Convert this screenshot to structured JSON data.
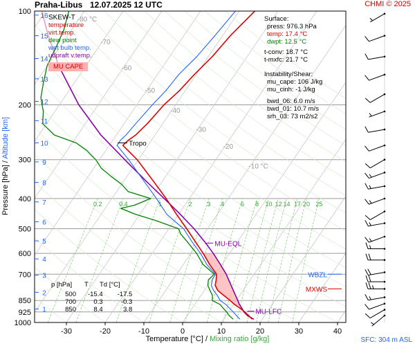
{
  "header": {
    "station": "Praha-Libus",
    "datetime": "12.07.2025 12 UTC",
    "credit": "CHMI © 2025"
  },
  "legend": {
    "title": "SKEW-T",
    "items": [
      {
        "label": "temperature",
        "color": "#e00000"
      },
      {
        "label": "virt.temp.",
        "color": "#e00000"
      },
      {
        "label": "dew point",
        "color": "#008000"
      },
      {
        "label": "wet bulb temp.",
        "color": "#1e64ff"
      },
      {
        "label": "udpraft v.temp.",
        "color": "#8800aa"
      }
    ],
    "badge": "MU CAPE",
    "badge_color": "#ffb0b0"
  },
  "surface_box": {
    "title": "Surface:",
    "lines": [
      {
        "text": "press: 976.3 hPa",
        "color": "#000000"
      },
      {
        "text": "temp: 17.4 °C",
        "color": "#e00000"
      },
      {
        "text": "dwpt: 12.5 °C",
        "color": "#008000"
      },
      {
        "text": "t-conv: 18.7 °C",
        "color": "#000000"
      },
      {
        "text": "t-mxfc: 21.7 °C",
        "color": "#000000"
      }
    ]
  },
  "instability_box": {
    "title": "Instability/Shear:",
    "lines": [
      "mu_cape: 106 J/kg",
      "mu_cinh: -1 J/kg",
      "",
      "bwd_06: 6.0 m/s",
      "bwd_01: 10.7 m/s",
      "srh_03: 73 m2/s2"
    ]
  },
  "table": {
    "headers": [
      "p [hPa]",
      "T",
      "Td [°C]"
    ],
    "rows": [
      [
        "500",
        "-15.4",
        "-17.5"
      ],
      [
        "700",
        "0.3",
        "-0.3"
      ],
      [
        "850",
        "8.4",
        "3.8"
      ]
    ]
  },
  "footer": {
    "sfc": "SFC: 304 m ASL"
  },
  "chart_data": {
    "type": "skew-t",
    "x_label": "Temperature [°C]",
    "x_label_sep": "/",
    "x_label2": "Mixing ratio [g/kg]",
    "y_label": "Pressure [hPa]",
    "y_label_sep": "/",
    "y_label2": "Altitude [km]",
    "temp_ticks": [
      -30,
      -20,
      -10,
      0,
      10,
      20,
      30,
      40
    ],
    "pressure_ticks": [
      100,
      200,
      300,
      400,
      500,
      600,
      700,
      850,
      925,
      1000
    ],
    "altitude_ticks": [
      {
        "km": 1,
        "p": 905
      },
      {
        "km": 2,
        "p": 800
      },
      {
        "km": 3,
        "p": 705
      },
      {
        "km": 4,
        "p": 625
      },
      {
        "km": 5,
        "p": 547
      },
      {
        "km": 6,
        "p": 475
      },
      {
        "km": 7,
        "p": 410
      },
      {
        "km": 8,
        "p": 355
      },
      {
        "km": 9,
        "p": 305
      },
      {
        "km": 10,
        "p": 265
      },
      {
        "km": 11,
        "p": 225
      },
      {
        "km": 12,
        "p": 195
      },
      {
        "km": 13,
        "p": 165
      },
      {
        "km": 14,
        "p": 142
      },
      {
        "km": 15,
        "p": 120
      },
      {
        "km": 16,
        "p": 103
      }
    ],
    "isotherm_labels": [
      {
        "t": -80,
        "p": 108,
        "text": "-80 °C"
      },
      {
        "t": -70,
        "p": 128,
        "text": "-70"
      },
      {
        "t": -60,
        "p": 155,
        "text": "-60"
      },
      {
        "t": -50,
        "p": 183,
        "text": "-50"
      },
      {
        "t": -40,
        "p": 212,
        "text": "-40"
      },
      {
        "t": -30,
        "p": 244,
        "text": "-30"
      },
      {
        "t": -20,
        "p": 277,
        "text": "-20"
      },
      {
        "t": -10,
        "p": 320,
        "text": "-10 °C"
      }
    ],
    "mixing_ratio_labels": [
      "0.2",
      "0.4",
      "1",
      "2",
      "3",
      "4",
      "6",
      "8",
      "10",
      "12",
      "14",
      "17",
      "20",
      "25"
    ],
    "temperature": [
      [
        976,
        17.4
      ],
      [
        950,
        15.8
      ],
      [
        925,
        14.2
      ],
      [
        900,
        12.3
      ],
      [
        875,
        10.2
      ],
      [
        850,
        8.4
      ],
      [
        820,
        6.0
      ],
      [
        790,
        3.5
      ],
      [
        760,
        1.9
      ],
      [
        730,
        1.2
      ],
      [
        700,
        0.3
      ],
      [
        650,
        -3.3
      ],
      [
        600,
        -6.8
      ],
      [
        550,
        -10.9
      ],
      [
        500,
        -15.4
      ],
      [
        450,
        -20.5
      ],
      [
        400,
        -26.0
      ],
      [
        350,
        -32.6
      ],
      [
        300,
        -40.3
      ],
      [
        270,
        -46.5
      ],
      [
        260,
        -46.0
      ],
      [
        250,
        -45.0
      ],
      [
        230,
        -44.0
      ],
      [
        200,
        -43.0
      ],
      [
        180,
        -41.5
      ],
      [
        160,
        -40.5
      ],
      [
        140,
        -39.0
      ],
      [
        120,
        -38.0
      ],
      [
        100,
        -36.0
      ]
    ],
    "dew_point": [
      [
        976,
        12.5
      ],
      [
        950,
        10.8
      ],
      [
        925,
        9.5
      ],
      [
        900,
        8.0
      ],
      [
        875,
        6.5
      ],
      [
        850,
        3.8
      ],
      [
        820,
        3.0
      ],
      [
        790,
        1.5
      ],
      [
        760,
        0.0
      ],
      [
        730,
        -0.8
      ],
      [
        700,
        -0.3
      ],
      [
        650,
        -5.0
      ],
      [
        600,
        -8.5
      ],
      [
        550,
        -13.0
      ],
      [
        520,
        -16.0
      ],
      [
        500,
        -17.5
      ],
      [
        470,
        -25.0
      ],
      [
        450,
        -31.0
      ],
      [
        430,
        -36.0
      ],
      [
        420,
        -33.0
      ],
      [
        400,
        -30.0
      ],
      [
        380,
        -37.0
      ],
      [
        360,
        -40.0
      ],
      [
        340,
        -44.0
      ],
      [
        320,
        -48.0
      ],
      [
        300,
        -51.0
      ],
      [
        280,
        -55.0
      ],
      [
        265,
        -59.0
      ],
      [
        250,
        -66.0
      ],
      [
        230,
        -71.0
      ],
      [
        210,
        -73.0
      ],
      [
        190,
        -76.0
      ],
      [
        170,
        -78.0
      ],
      [
        150,
        -80.0
      ],
      [
        130,
        -81.0
      ],
      [
        115,
        -82.0
      ],
      [
        100,
        -84.0
      ]
    ],
    "wet_bulb": [
      [
        976,
        14.2
      ],
      [
        950,
        12.7
      ],
      [
        925,
        11.2
      ],
      [
        900,
        9.6
      ],
      [
        875,
        8.0
      ],
      [
        850,
        5.8
      ],
      [
        820,
        4.3
      ],
      [
        790,
        2.4
      ],
      [
        760,
        0.9
      ],
      [
        730,
        0.2
      ],
      [
        700,
        0.0
      ],
      [
        650,
        -4.0
      ],
      [
        600,
        -7.5
      ],
      [
        550,
        -11.8
      ],
      [
        500,
        -16.2
      ],
      [
        450,
        -23.0
      ],
      [
        400,
        -28.5
      ],
      [
        350,
        -35.0
      ],
      [
        300,
        -42.5
      ],
      [
        270,
        -48.0
      ],
      [
        260,
        -48.0
      ],
      [
        250,
        -47.5
      ],
      [
        230,
        -47.0
      ],
      [
        200,
        -46.0
      ],
      [
        180,
        -45.0
      ],
      [
        160,
        -44.5
      ],
      [
        140,
        -43.0
      ],
      [
        120,
        -42.0
      ],
      [
        100,
        -41.0
      ]
    ],
    "updraft_vtemp": [
      [
        976,
        17.8
      ],
      [
        950,
        15.5
      ],
      [
        925,
        14.0
      ],
      [
        900,
        12.8
      ],
      [
        875,
        11.5
      ],
      [
        850,
        10.4
      ],
      [
        800,
        8.0
      ],
      [
        750,
        5.5
      ],
      [
        700,
        2.8
      ],
      [
        650,
        -0.5
      ],
      [
        600,
        -4.2
      ],
      [
        550,
        -8.5
      ],
      [
        500,
        -13.5
      ],
      [
        450,
        -19.5
      ],
      [
        400,
        -26.5
      ],
      [
        350,
        -34.5
      ],
      [
        300,
        -43.5
      ],
      [
        250,
        -54.0
      ],
      [
        200,
        -65.0
      ],
      [
        150,
        -77.0
      ],
      [
        120,
        -85.0
      ],
      [
        100,
        -91.0
      ]
    ],
    "level_markers": [
      {
        "label": "Tropo",
        "p": 265,
        "color": "#000000"
      },
      {
        "label": "MU-EQL",
        "p": 556,
        "color": "#8800aa"
      },
      {
        "label": "MU-LFC",
        "p": 920,
        "color": "#8800aa"
      },
      {
        "label": "WBZL",
        "p": 700,
        "color": "#1e64ff"
      },
      {
        "label": "MXWS",
        "p": 780,
        "color": "#e00000"
      }
    ],
    "wind_barbs": [
      {
        "p": 102,
        "dir": 240,
        "spd": 5
      },
      {
        "p": 120,
        "dir": 250,
        "spd": 10
      },
      {
        "p": 140,
        "dir": 260,
        "spd": 10
      },
      {
        "p": 160,
        "dir": 250,
        "spd": 10
      },
      {
        "p": 185,
        "dir": 240,
        "spd": 10
      },
      {
        "p": 210,
        "dir": 250,
        "spd": 5
      },
      {
        "p": 240,
        "dir": 260,
        "spd": 10
      },
      {
        "p": 270,
        "dir": 250,
        "spd": 10
      },
      {
        "p": 300,
        "dir": 240,
        "spd": 10
      },
      {
        "p": 330,
        "dir": 250,
        "spd": 15
      },
      {
        "p": 365,
        "dir": 260,
        "spd": 15
      },
      {
        "p": 400,
        "dir": 250,
        "spd": 15
      },
      {
        "p": 440,
        "dir": 240,
        "spd": 10
      },
      {
        "p": 480,
        "dir": 260,
        "spd": 15
      },
      {
        "p": 530,
        "dir": 250,
        "spd": 15
      },
      {
        "p": 580,
        "dir": 270,
        "spd": 15
      },
      {
        "p": 630,
        "dir": 270,
        "spd": 20
      },
      {
        "p": 690,
        "dir": 260,
        "spd": 20
      },
      {
        "p": 740,
        "dir": 270,
        "spd": 20
      },
      {
        "p": 780,
        "dir": 270,
        "spd": 25
      },
      {
        "p": 830,
        "dir": 260,
        "spd": 15
      },
      {
        "p": 870,
        "dir": 250,
        "spd": 10
      },
      {
        "p": 910,
        "dir": 240,
        "spd": 10
      },
      {
        "p": 950,
        "dir": 230,
        "spd": 5
      }
    ]
  }
}
